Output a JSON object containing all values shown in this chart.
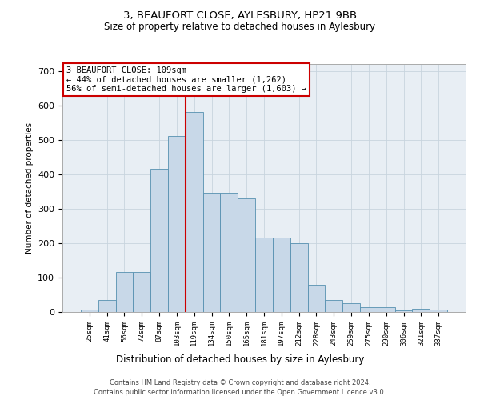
{
  "title1": "3, BEAUFORT CLOSE, AYLESBURY, HP21 9BB",
  "title2": "Size of property relative to detached houses in Aylesbury",
  "xlabel": "Distribution of detached houses by size in Aylesbury",
  "ylabel": "Number of detached properties",
  "categories": [
    "25sqm",
    "41sqm",
    "56sqm",
    "72sqm",
    "87sqm",
    "103sqm",
    "119sqm",
    "134sqm",
    "150sqm",
    "165sqm",
    "181sqm",
    "197sqm",
    "212sqm",
    "228sqm",
    "243sqm",
    "259sqm",
    "275sqm",
    "290sqm",
    "306sqm",
    "321sqm",
    "337sqm"
  ],
  "values": [
    8,
    35,
    115,
    115,
    415,
    510,
    580,
    345,
    345,
    330,
    215,
    215,
    200,
    80,
    35,
    25,
    13,
    13,
    5,
    10,
    8
  ],
  "bar_color": "#c8d8e8",
  "bar_edge_color": "#5590b0",
  "red_line_color": "#cc0000",
  "annotation_text": "3 BEAUFORT CLOSE: 109sqm\n← 44% of detached houses are smaller (1,262)\n56% of semi-detached houses are larger (1,603) →",
  "annotation_box_color": "#ffffff",
  "annotation_box_edge_color": "#cc0000",
  "grid_color": "#c8d4de",
  "background_color": "#e8eef4",
  "footer1": "Contains HM Land Registry data © Crown copyright and database right 2024.",
  "footer2": "Contains public sector information licensed under the Open Government Licence v3.0.",
  "ylim": [
    0,
    720
  ],
  "yticks": [
    0,
    100,
    200,
    300,
    400,
    500,
    600,
    700
  ]
}
